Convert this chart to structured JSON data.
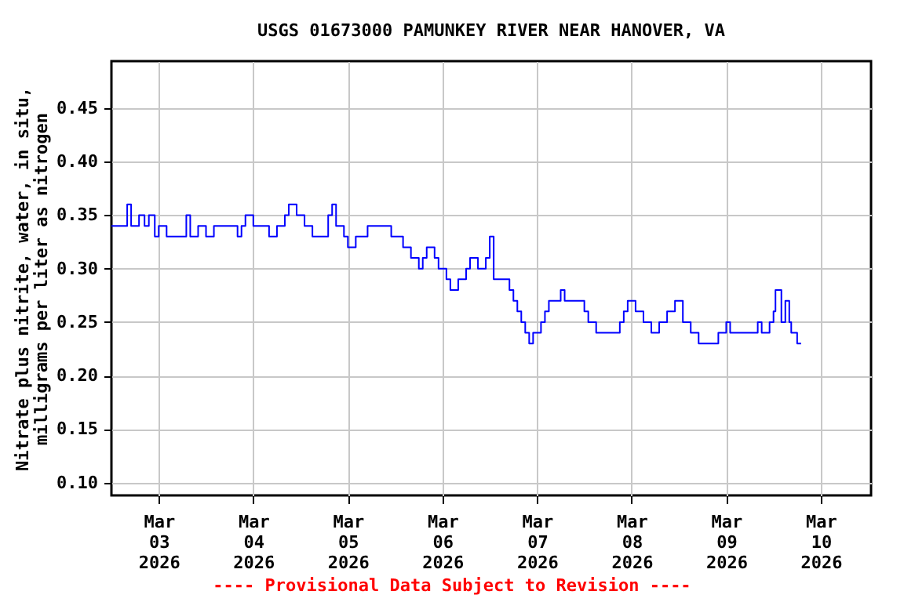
{
  "chart_data": {
    "type": "step",
    "title": "USGS 01673000 PAMUNKEY RIVER NEAR HANOVER, VA",
    "ylabel": "Nitrate plus nitrite, water, in situ,\nmilligrams per liter as nitrogen",
    "annotations": [
      "---- Provisional Data Subject to Revision ----"
    ],
    "x": [
      "2026-03-02T12:00",
      "2026-03-02T16:00",
      "2026-03-02T17:00",
      "2026-03-02T19:00",
      "2026-03-02T20:24",
      "2026-03-02T21:30",
      "2026-03-02T23:00",
      "2026-03-03T00:00",
      "2026-03-03T02:00",
      "2026-03-03T04:00",
      "2026-03-03T07:00",
      "2026-03-03T08:00",
      "2026-03-03T10:00",
      "2026-03-03T12:00",
      "2026-03-03T14:00",
      "2026-03-03T18:00",
      "2026-03-03T20:00",
      "2026-03-03T21:00",
      "2026-03-03T22:00",
      "2026-03-04T00:00",
      "2026-03-04T04:00",
      "2026-03-04T06:00",
      "2026-03-04T08:00",
      "2026-03-04T09:00",
      "2026-03-04T11:00",
      "2026-03-04T13:00",
      "2026-03-04T15:00",
      "2026-03-04T18:00",
      "2026-03-04T19:00",
      "2026-03-04T20:00",
      "2026-03-04T21:00",
      "2026-03-04T23:00",
      "2026-03-05T00:00",
      "2026-03-05T02:00",
      "2026-03-05T05:00",
      "2026-03-05T09:00",
      "2026-03-05T11:00",
      "2026-03-05T14:00",
      "2026-03-05T16:00",
      "2026-03-05T18:00",
      "2026-03-05T19:00",
      "2026-03-05T20:00",
      "2026-03-05T22:00",
      "2026-03-05T23:00",
      "2026-03-06T01:00",
      "2026-03-06T02:00",
      "2026-03-06T04:00",
      "2026-03-06T06:00",
      "2026-03-06T07:00",
      "2026-03-06T09:00",
      "2026-03-06T11:00",
      "2026-03-06T12:00",
      "2026-03-06T13:00",
      "2026-03-06T15:00",
      "2026-03-06T17:00",
      "2026-03-06T18:00",
      "2026-03-06T19:00",
      "2026-03-06T20:00",
      "2026-03-06T21:00",
      "2026-03-06T22:00",
      "2026-03-06T23:00",
      "2026-03-07T01:00",
      "2026-03-07T02:00",
      "2026-03-07T03:00",
      "2026-03-07T06:00",
      "2026-03-07T07:00",
      "2026-03-07T10:00",
      "2026-03-07T12:00",
      "2026-03-07T13:00",
      "2026-03-07T15:00",
      "2026-03-07T19:00",
      "2026-03-07T21:00",
      "2026-03-07T22:00",
      "2026-03-07T23:00",
      "2026-03-08T01:00",
      "2026-03-08T03:00",
      "2026-03-08T05:00",
      "2026-03-08T07:00",
      "2026-03-08T09:00",
      "2026-03-08T11:00",
      "2026-03-08T13:00",
      "2026-03-08T15:00",
      "2026-03-08T17:00",
      "2026-03-08T21:00",
      "2026-03-08T22:00",
      "2026-03-09T00:00",
      "2026-03-09T01:00",
      "2026-03-09T07:00",
      "2026-03-09T08:00",
      "2026-03-09T09:00",
      "2026-03-09T11:00",
      "2026-03-09T12:00",
      "2026-03-09T12:30",
      "2026-03-09T14:00",
      "2026-03-09T15:00",
      "2026-03-09T16:00",
      "2026-03-09T16:30",
      "2026-03-09T18:00",
      "2026-03-09T19:00"
    ],
    "series": [
      {
        "color": "#0000ff",
        "values": [
          0.34,
          0.36,
          0.34,
          0.35,
          0.34,
          0.35,
          0.33,
          0.34,
          0.33,
          0.33,
          0.35,
          0.33,
          0.34,
          0.33,
          0.34,
          0.34,
          0.33,
          0.34,
          0.35,
          0.34,
          0.33,
          0.34,
          0.35,
          0.36,
          0.35,
          0.34,
          0.33,
          0.33,
          0.35,
          0.36,
          0.34,
          0.33,
          0.32,
          0.33,
          0.34,
          0.34,
          0.33,
          0.32,
          0.31,
          0.3,
          0.31,
          0.32,
          0.31,
          0.3,
          0.29,
          0.28,
          0.29,
          0.3,
          0.31,
          0.3,
          0.31,
          0.33,
          0.29,
          0.29,
          0.28,
          0.27,
          0.26,
          0.25,
          0.24,
          0.23,
          0.24,
          0.25,
          0.26,
          0.27,
          0.28,
          0.27,
          0.27,
          0.26,
          0.25,
          0.24,
          0.24,
          0.25,
          0.26,
          0.27,
          0.26,
          0.25,
          0.24,
          0.25,
          0.26,
          0.27,
          0.25,
          0.24,
          0.23,
          0.23,
          0.24,
          0.25,
          0.24,
          0.24,
          0.25,
          0.24,
          0.25,
          0.26,
          0.28,
          0.25,
          0.27,
          0.25,
          0.24,
          0.23,
          0.23
        ]
      }
    ],
    "xlim": [
      "2026-03-02T12:00",
      "2026-03-10T12:45"
    ],
    "xticks": [
      {
        "value": "2026-03-03",
        "label": "Mar\n03\n2026"
      },
      {
        "value": "2026-03-04",
        "label": "Mar\n04\n2026"
      },
      {
        "value": "2026-03-05",
        "label": "Mar\n05\n2026"
      },
      {
        "value": "2026-03-06",
        "label": "Mar\n06\n2026"
      },
      {
        "value": "2026-03-07",
        "label": "Mar\n07\n2026"
      },
      {
        "value": "2026-03-08",
        "label": "Mar\n08\n2026"
      },
      {
        "value": "2026-03-09",
        "label": "Mar\n09\n2026"
      },
      {
        "value": "2026-03-10",
        "label": "Mar\n10\n2026"
      }
    ],
    "ylim": [
      0.088,
      0.494
    ],
    "yticks": [
      {
        "value": 0.1,
        "label": "0.10"
      },
      {
        "value": 0.15,
        "label": "0.15"
      },
      {
        "value": 0.2,
        "label": "0.20"
      },
      {
        "value": 0.25,
        "label": "0.25"
      },
      {
        "value": 0.3,
        "label": "0.30"
      },
      {
        "value": 0.35,
        "label": "0.35"
      },
      {
        "value": 0.4,
        "label": "0.40"
      },
      {
        "value": 0.45,
        "label": "0.45"
      }
    ],
    "grid": true
  }
}
